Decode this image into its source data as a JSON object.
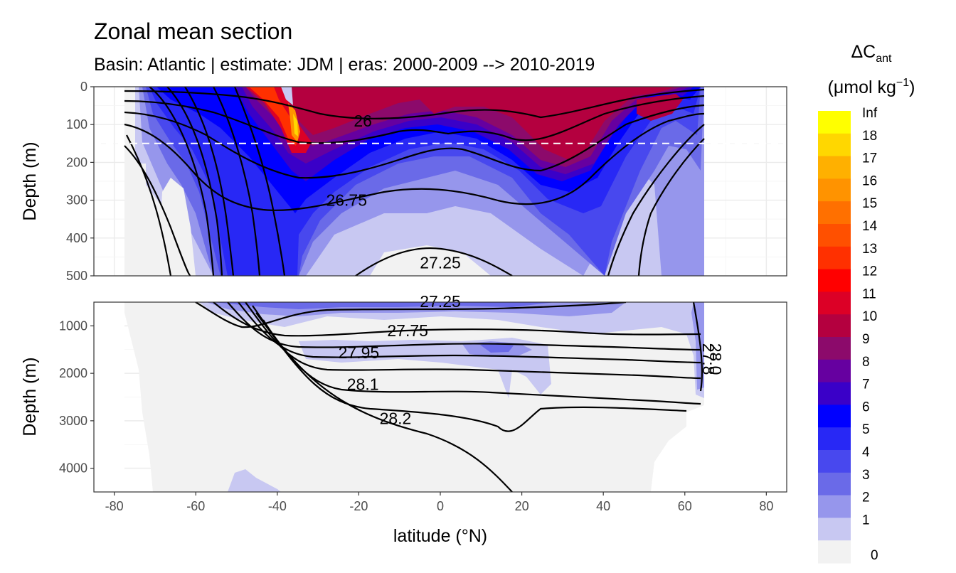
{
  "chart_data": {
    "type": "heatmap",
    "title": "Zonal mean section",
    "subtitle": "Basin: Atlantic | estimate: JDM  | eras: 2000-2009 --> 2010-2019",
    "xlabel": "latitude (°N)",
    "ylabel_top": "Depth (m)",
    "ylabel_bottom": "Depth (m)",
    "x_ticks": [
      "-80",
      "-60",
      "-40",
      "-20",
      "0",
      "20",
      "40",
      "60",
      "80"
    ],
    "xlim": [
      -85,
      85
    ],
    "top_panel": {
      "ylim": [
        0,
        500
      ],
      "y_ticks": [
        "0",
        "100",
        "200",
        "300",
        "400",
        "500"
      ],
      "y_values": [
        0,
        100,
        200,
        300,
        400,
        500
      ]
    },
    "bottom_panel": {
      "ylim": [
        500,
        4500
      ],
      "y_ticks": [
        "1000",
        "2000",
        "3000",
        "4000"
      ],
      "y_values": [
        1000,
        2000,
        3000,
        4000
      ]
    },
    "reference_line_depth": 150,
    "legend": {
      "title_main": "ΔC",
      "title_sub": "ant",
      "unit_open": "(μmol kg",
      "unit_exp": "−1",
      "unit_close": ")",
      "labels": [
        "Inf",
        "18",
        "17",
        "16",
        "15",
        "14",
        "13",
        "12",
        "11",
        "10",
        "9",
        "8",
        "7",
        "6",
        "5",
        "4",
        "3",
        "2",
        "1",
        "0"
      ],
      "colors": [
        "#ffff00",
        "#ffd700",
        "#ffb000",
        "#ff9300",
        "#ff7000",
        "#ff5000",
        "#ff3000",
        "#ff0000",
        "#dc0026",
        "#b4003f",
        "#8c0a6b",
        "#6600a0",
        "#3a00c8",
        "#0000ff",
        "#2828f5",
        "#4848ee",
        "#6a6ae8",
        "#9696ec",
        "#c8c8f2",
        "#f2f2f2"
      ]
    },
    "contour_labels_top": [
      "26",
      "26.75",
      "27.25"
    ],
    "contour_labels_bottom": [
      "27.25",
      "27.75",
      "27.95",
      "28.1",
      "28.2",
      "27.8",
      "28.0"
    ],
    "contour_label_positions": {
      "26": [
        -19,
        90
      ],
      "26.75": [
        -23,
        300
      ],
      "27.25": [
        0,
        465
      ],
      "27.25b": [
        0,
        500
      ],
      "27.75": [
        -8,
        1100
      ],
      "27.95": [
        -20,
        1560
      ],
      "28.1": [
        -19,
        2230
      ],
      "28.2": [
        -11,
        2950
      ]
    }
  }
}
